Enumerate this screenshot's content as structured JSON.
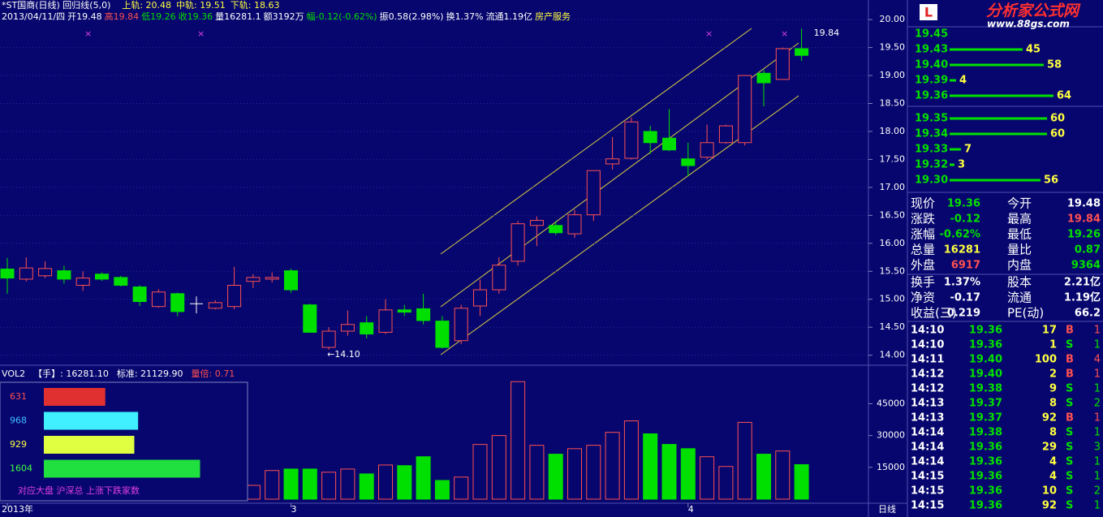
{
  "chart_data": [
    {
      "type": "candlestick",
      "title": "*ST国商(日线) 回归线(5,0)",
      "channel_labels": [
        "上轨: 20.48",
        "中轨: 19.51",
        "下轨: 18.63"
      ],
      "info": [
        {
          "text": "2013/04/11/四",
          "color": "#ffffff"
        },
        {
          "text": "开19.48",
          "color": "#ffffff"
        },
        {
          "text": "高19.84",
          "color": "#ff5050"
        },
        {
          "text": "低19.26",
          "color": "#00e000"
        },
        {
          "text": "收19.36",
          "color": "#00e000"
        },
        {
          "text": "量16281.1",
          "color": "#ffffff"
        },
        {
          "text": "额3192万",
          "color": "#ffffff"
        },
        {
          "text": "幅-0.12(-0.62%)",
          "color": "#00e000"
        },
        {
          "text": "振0.58(2.98%)",
          "color": "#ffffff"
        },
        {
          "text": "换1.37%",
          "color": "#ffffff"
        },
        {
          "text": "流通1.19亿",
          "color": "#ffffff"
        },
        {
          "text": "房产服务",
          "color": "#ffff40"
        }
      ],
      "categories": [
        "2013年",
        null,
        null,
        null,
        null,
        null,
        null,
        null,
        null,
        null,
        null,
        null,
        null,
        null,
        null,
        "3",
        null,
        null,
        null,
        null,
        null,
        null,
        null,
        null,
        null,
        null,
        null,
        null,
        null,
        null,
        null,
        null,
        null,
        null,
        null,
        null,
        "4",
        null,
        null,
        null,
        null,
        null,
        null
      ],
      "period": "日线",
      "open": [
        15.54,
        15.36,
        15.42,
        15.51,
        15.25,
        15.45,
        15.39,
        15.22,
        14.87,
        15.1,
        14.92,
        14.84,
        14.87,
        15.32,
        15.36,
        15.51,
        14.9,
        14.14,
        14.43,
        14.58,
        14.41,
        14.81,
        14.83,
        14.61,
        14.26,
        14.88,
        15.17,
        15.68,
        16.32,
        16.32,
        16.17,
        16.51,
        17.42,
        17.52,
        18.0,
        17.88,
        17.51,
        17.54,
        17.8,
        17.8,
        19.04,
        18.93,
        19.48
      ],
      "high": [
        15.74,
        15.75,
        15.68,
        15.6,
        15.5,
        15.48,
        15.42,
        15.25,
        15.18,
        15.12,
        15.05,
        14.98,
        15.58,
        15.45,
        15.48,
        15.55,
        14.92,
        14.5,
        14.8,
        14.7,
        15.0,
        14.9,
        15.1,
        14.7,
        14.9,
        15.35,
        15.75,
        16.4,
        16.48,
        16.4,
        16.6,
        17.3,
        17.9,
        18.25,
        18.1,
        18.4,
        17.8,
        18.12,
        18.12,
        19.0,
        19.1,
        19.5,
        19.84
      ],
      "low": [
        15.1,
        15.32,
        15.38,
        15.28,
        15.15,
        15.33,
        15.23,
        14.88,
        14.85,
        14.7,
        14.75,
        14.82,
        14.82,
        15.2,
        15.3,
        15.12,
        14.4,
        14.1,
        14.35,
        14.3,
        14.38,
        14.7,
        14.55,
        14.12,
        14.2,
        14.7,
        15.1,
        15.6,
        15.95,
        16.15,
        16.1,
        16.4,
        17.32,
        17.5,
        17.6,
        17.65,
        17.2,
        17.5,
        17.78,
        17.75,
        18.45,
        18.93,
        19.26
      ],
      "close": [
        15.38,
        15.56,
        15.55,
        15.36,
        15.38,
        15.36,
        15.25,
        14.96,
        15.13,
        14.78,
        14.92,
        14.94,
        15.25,
        15.39,
        15.39,
        15.17,
        14.41,
        14.43,
        14.55,
        14.38,
        14.81,
        14.77,
        14.62,
        14.14,
        14.84,
        15.17,
        15.61,
        16.35,
        16.41,
        16.19,
        16.51,
        17.3,
        17.51,
        18.17,
        17.8,
        17.67,
        17.39,
        17.8,
        18.1,
        19.0,
        18.87,
        19.48,
        19.36
      ],
      "up_color": "#ff5050",
      "down_color": "#00e000",
      "annotations": [
        {
          "text": "19.84",
          "index": 42
        },
        {
          "text": "←14.10",
          "index": 17
        }
      ],
      "ylim": [
        13.85,
        20.35
      ],
      "yticks": [
        {
          "value": 14,
          "label": "14.00"
        },
        {
          "value": 14.5,
          "label": "14.50"
        },
        {
          "value": 15,
          "label": "15.00"
        },
        {
          "value": 15.5,
          "label": "15.50"
        },
        {
          "value": 16,
          "label": "16.00"
        },
        {
          "value": 16.5,
          "label": "16.50"
        },
        {
          "value": 17,
          "label": "17.00"
        },
        {
          "value": 17.5,
          "label": "17.50"
        },
        {
          "value": 18,
          "label": "18.00"
        },
        {
          "value": 18.5,
          "label": "18.50"
        },
        {
          "value": 19,
          "label": "19.00"
        },
        {
          "value": 19.5,
          "label": "19.50"
        },
        {
          "value": 20,
          "label": "20.00"
        }
      ],
      "grid": true
    },
    {
      "type": "bar",
      "title": "VOL2",
      "info": [
        {
          "text": "【手】: 16281.10",
          "color": "#ffffff"
        },
        {
          "text": "标准: 21129.90",
          "color": "#ffffff"
        },
        {
          "text": "量倍: 0.71",
          "color": "#ff5050"
        }
      ],
      "values": [
        null,
        null,
        null,
        null,
        null,
        null,
        null,
        null,
        null,
        null,
        null,
        null,
        null,
        6500,
        13500,
        14200,
        14200,
        12700,
        14200,
        11900,
        16100,
        15800,
        20000,
        8800,
        10400,
        25800,
        30000,
        55400,
        25400,
        21200,
        23800,
        25400,
        31500,
        36900,
        30800,
        25800,
        23800,
        20000,
        15400,
        36200,
        21200,
        22700,
        16281.1
      ],
      "ylim": [
        0,
        62000
      ],
      "yticks": [
        15000,
        30000,
        45000
      ]
    },
    {
      "type": "hbar",
      "values": [
        631,
        968,
        929,
        1604
      ],
      "colors": [
        "#e03030",
        "#40f0ff",
        "#e0ff40",
        "#20e040"
      ],
      "label_colors": [
        "#ff5050",
        "#40c0ff",
        "#ffff40",
        "#40ff40"
      ],
      "caption": "对应大盘 沪深总 上涨下跌家数",
      "xlim": [
        0,
        2000
      ]
    }
  ],
  "logo": {
    "mark": "L",
    "title": "分析家公式网",
    "url": "www.88gs.com"
  },
  "order_book": [
    {
      "price": "19.45",
      "qty": null
    },
    {
      "price": "19.43",
      "qty": 45
    },
    {
      "price": "19.40",
      "qty": 58
    },
    {
      "price": "19.39",
      "qty": 4
    },
    {
      "price": "19.36",
      "qty": 64
    },
    {
      "price": "19.35",
      "qty": 60
    },
    {
      "price": "19.34",
      "qty": 60
    },
    {
      "price": "19.33",
      "qty": 7
    },
    {
      "price": "19.32",
      "qty": 3
    },
    {
      "price": "19.30",
      "qty": 56
    }
  ],
  "quote": [
    [
      {
        "text": "现价"
      },
      {
        "text": "19.36",
        "color": "#00e000"
      },
      {
        "text": "今开"
      },
      {
        "text": "19.48",
        "color": "#ffffff"
      }
    ],
    [
      {
        "text": "涨跌"
      },
      {
        "text": "-0.12",
        "color": "#00e000"
      },
      {
        "text": "最高"
      },
      {
        "text": "19.84",
        "color": "#ff5050"
      }
    ],
    [
      {
        "text": "涨幅"
      },
      {
        "text": "-0.62%",
        "color": "#00e000"
      },
      {
        "text": "最低"
      },
      {
        "text": "19.26",
        "color": "#00e000"
      }
    ],
    [
      {
        "text": "总量"
      },
      {
        "text": "16281",
        "color": "#ffff40"
      },
      {
        "text": "量比"
      },
      {
        "text": "0.87",
        "color": "#00e000"
      }
    ],
    [
      {
        "text": "外盘"
      },
      {
        "text": "6917",
        "color": "#ff5050"
      },
      {
        "text": "内盘"
      },
      {
        "text": "9364",
        "color": "#00e000"
      }
    ],
    [
      {
        "text": "换手"
      },
      {
        "text": "1.37%",
        "color": "#ffffff"
      },
      {
        "text": "股本"
      },
      {
        "text": "2.21亿",
        "color": "#ffffff"
      }
    ],
    [
      {
        "text": "净资"
      },
      {
        "text": "-0.17",
        "color": "#ffffff"
      },
      {
        "text": "流通"
      },
      {
        "text": "1.19亿",
        "color": "#ffffff"
      }
    ],
    [
      {
        "text": "收益(三)"
      },
      {
        "text": "0.219",
        "color": "#ffffff"
      },
      {
        "text": "PE(动)"
      },
      {
        "text": "66.2",
        "color": "#ffffff"
      }
    ]
  ],
  "trades": [
    [
      "14:10",
      "19.36",
      "17",
      "B",
      "1"
    ],
    [
      "14:10",
      "19.36",
      "1",
      "S",
      "1"
    ],
    [
      "14:11",
      "19.40",
      "100",
      "B",
      "4"
    ],
    [
      "14:12",
      "19.40",
      "2",
      "B",
      "1"
    ],
    [
      "14:12",
      "19.38",
      "9",
      "S",
      "1"
    ],
    [
      "14:13",
      "19.37",
      "8",
      "S",
      "2"
    ],
    [
      "14:13",
      "19.37",
      "92",
      "B",
      "1"
    ],
    [
      "14:14",
      "19.38",
      "8",
      "S",
      "1"
    ],
    [
      "14:14",
      "19.36",
      "29",
      "S",
      "3"
    ],
    [
      "14:14",
      "19.36",
      "4",
      "S",
      "1"
    ],
    [
      "14:15",
      "19.36",
      "4",
      "S",
      "1"
    ],
    [
      "14:15",
      "19.36",
      "10",
      "S",
      "2"
    ],
    [
      "14:15",
      "19.36",
      "92",
      "S",
      "1"
    ]
  ]
}
